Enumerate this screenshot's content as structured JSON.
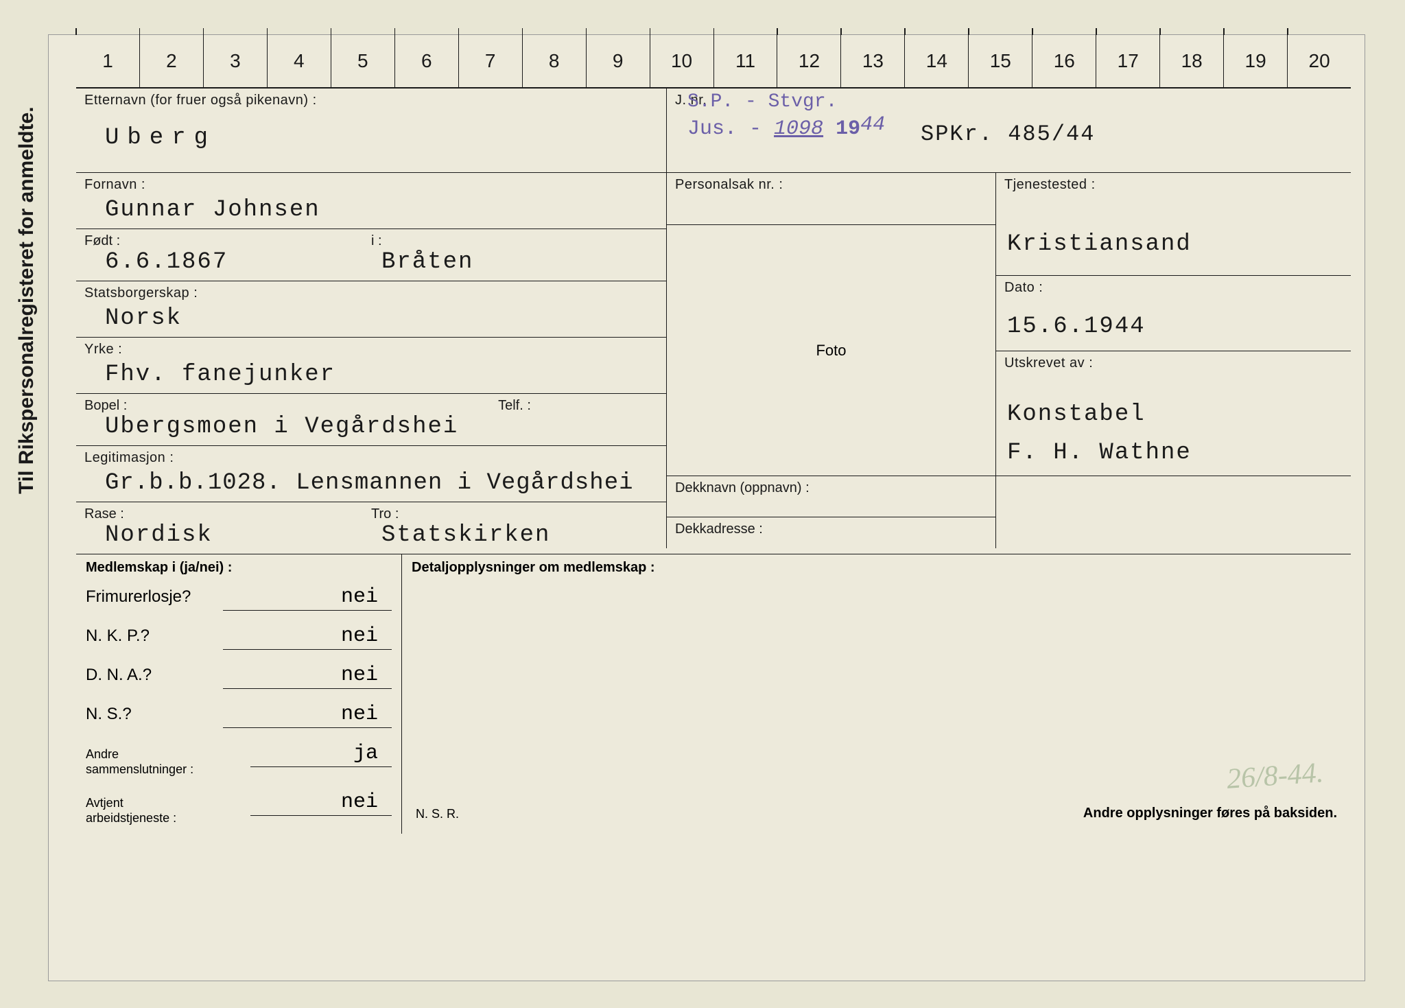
{
  "vertical_title": "Til Rikspersonalregisteret for anmeldte.",
  "ruler": [
    "1",
    "2",
    "3",
    "4",
    "5",
    "6",
    "7",
    "8",
    "9",
    "10",
    "11",
    "12",
    "13",
    "14",
    "15",
    "16",
    "17",
    "18",
    "19",
    "20"
  ],
  "left": {
    "etternavn_label": "Etternavn (for fruer også pikenavn) :",
    "etternavn": "Uberg",
    "fornavn_label": "Fornavn :",
    "fornavn": "Gunnar Johnsen",
    "fodt_label": "Født :",
    "i_label": "i :",
    "fodt": "6.6.1867",
    "fodt_sted": "Bråten",
    "stats_label": "Statsborgerskap :",
    "stats": "Norsk",
    "yrke_label": "Yrke :",
    "yrke": "Fhv. fanejunker",
    "bopel_label": "Bopel :",
    "telf_label": "Telf. :",
    "bopel": "Ubergsmoen i Vegårdshei",
    "legit_label": "Legitimasjon :",
    "legit": "Gr.b.b.1028. Lensmannen i Vegårdshei",
    "rase_label": "Rase :",
    "tro_label": "Tro :",
    "rase": "Nordisk",
    "tro": "Statskirken"
  },
  "top_right": {
    "jnr_label": "J. nr. :",
    "stamp_line1": "S.P. - Stvgr.",
    "stamp_jus": "Jus. -",
    "stamp_1098": "1098",
    "stamp_19": "19",
    "stamp_44": "44",
    "spkr": "SPKr. 485/44",
    "personalisak_label": "Personalsak nr. :"
  },
  "foto_label": "Foto",
  "right": {
    "tjenestested_label": "Tjenestested :",
    "tjenestested": "Kristiansand",
    "dato_label": "Dato :",
    "dato": "15.6.1944",
    "utskrevet_label": "Utskrevet av :",
    "utskrevet1": "Konstabel",
    "utskrevet2": "F. H. Wathne"
  },
  "dekk": {
    "navn_label": "Dekknavn (oppnavn) :",
    "adresse_label": "Dekkadresse :"
  },
  "membership": {
    "header": "Medlemskap i (ja/nei) :",
    "rows": [
      {
        "q": "Frimurerlosje?",
        "a": "nei"
      },
      {
        "q": "N. K. P.?",
        "a": "nei"
      },
      {
        "q": "D. N. A.?",
        "a": "nei"
      },
      {
        "q": "N. S.?",
        "a": "nei"
      }
    ],
    "andre_label": "Andre\nsammenslutninger :",
    "andre": "ja",
    "avtjent_label": "Avtjent\narbeidstjeneste :",
    "avtjent": "nei"
  },
  "details": {
    "header": "Detaljopplysninger om medlemskap :",
    "nsr": "N. S. R.",
    "baksiden": "Andre opplysninger føres på baksiden.",
    "hand_note": "26/8-44."
  },
  "colors": {
    "paper": "#edeadb",
    "ink": "#1a1a1a",
    "stamp": "#6b5fa8",
    "pencil": "#b8c4a8"
  }
}
